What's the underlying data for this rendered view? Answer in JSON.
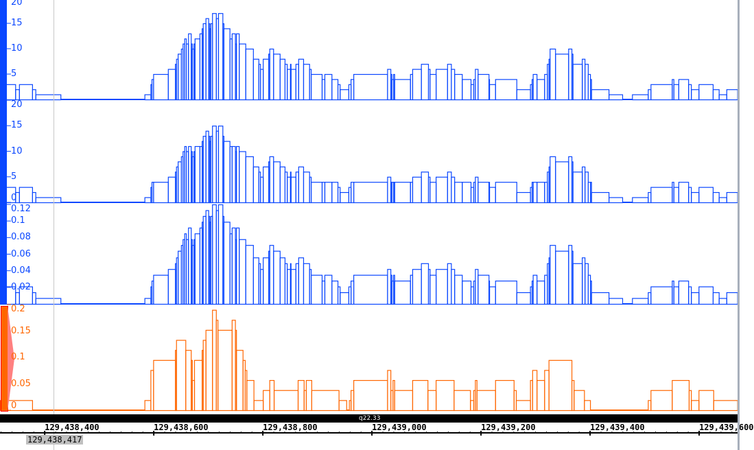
{
  "colors": {
    "coverage": "#0a47ff",
    "orange": "#ff6600",
    "orange_border": "#ff0000",
    "band": "#000000"
  },
  "positions": [
    129438318,
    129438346,
    129438353,
    129438377,
    129438383,
    129438429,
    129438583,
    129438594,
    129438596,
    129438599,
    129438626,
    129438639,
    129438641,
    129438644,
    129438650,
    129438653,
    129438656,
    129438659,
    129438663,
    129438668,
    129438670,
    129438673,
    129438675,
    129438684,
    129438688,
    129438690,
    129438695,
    129438700,
    129438702,
    129438704,
    129438707,
    129438714,
    129438718,
    129438726,
    129438728,
    129438739,
    129438743,
    129438749,
    129438751,
    129438756,
    129438768,
    129438782,
    129438792,
    129438795,
    129438800,
    129438810,
    129438812,
    129438819,
    129438831,
    129438840,
    129438844,
    129438850,
    129438851,
    129438860,
    129438865,
    129438874,
    129438885,
    129438888,
    129438908,
    129438913,
    129438926,
    129438937,
    129438941,
    129438957,
    129438961,
    129438966,
    129439028,
    129439034,
    129439036,
    129439039,
    129439041,
    129439070,
    129439074,
    129439090,
    129439103,
    129439106,
    129439117,
    129439138,
    129439145,
    129439151,
    129439165,
    129439181,
    129439186,
    129439189,
    129439194,
    129439214,
    129439215,
    129439226,
    129439265,
    129439290,
    129439293,
    129439295,
    129439302,
    129439316,
    129439321,
    129439324,
    129439326,
    129439336,
    129439360,
    129439366,
    129439368,
    129439385,
    129439390,
    129439396,
    129439400,
    129439402,
    129439434,
    129439459,
    129439477,
    129439506,
    129439511,
    129439550,
    129439553,
    129439562,
    129439580,
    129439585,
    129439599,
    129439625,
    129439636,
    129439650,
    129439670
  ],
  "tracks": [
    {
      "color": "#0a47ff",
      "range": [
        0,
        20
      ],
      "ticks": [
        "20",
        "15",
        "10",
        "5"
      ],
      "values": [
        3,
        2,
        3,
        2,
        1,
        0,
        1,
        3,
        4,
        5,
        6,
        7,
        8,
        9,
        10,
        11,
        12,
        11,
        13,
        11,
        10,
        11,
        12,
        13,
        14,
        15,
        16,
        15,
        14,
        15,
        17,
        16,
        17,
        15,
        14,
        12,
        13,
        11,
        13,
        11,
        10,
        8,
        7,
        6,
        8,
        9,
        10,
        9,
        8,
        7,
        6,
        7,
        6,
        7,
        8,
        7,
        6,
        5,
        4,
        5,
        4,
        3,
        2,
        3,
        4,
        5,
        6,
        5,
        4,
        5,
        4,
        5,
        6,
        7,
        6,
        5,
        6,
        7,
        6,
        5,
        4,
        3,
        4,
        6,
        5,
        4,
        3,
        4,
        2,
        3,
        4,
        5,
        4,
        5,
        7,
        8,
        10,
        9,
        10,
        9,
        7,
        8,
        7,
        5,
        4,
        2,
        1,
        0,
        1,
        2,
        3,
        4,
        3,
        4,
        3,
        2,
        3,
        2,
        1,
        2
      ]
    },
    {
      "color": "#0a47ff",
      "range": [
        0,
        20
      ],
      "ticks": [
        "20",
        "15",
        "10",
        "5",
        "0"
      ],
      "values": [
        3,
        2,
        3,
        2,
        1,
        0,
        1,
        3,
        4,
        4,
        5,
        6,
        7,
        8,
        9,
        10,
        11,
        10,
        11,
        10,
        9,
        10,
        11,
        11,
        12,
        13,
        14,
        13,
        12,
        13,
        15,
        14,
        15,
        13,
        12,
        11,
        11,
        10,
        11,
        10,
        9,
        7,
        6,
        5,
        7,
        8,
        9,
        8,
        7,
        6,
        5,
        6,
        5,
        6,
        7,
        6,
        5,
        4,
        4,
        4,
        4,
        3,
        2,
        3,
        4,
        4,
        5,
        4,
        4,
        4,
        4,
        4,
        5,
        6,
        5,
        4,
        5,
        6,
        5,
        4,
        4,
        3,
        4,
        5,
        4,
        4,
        3,
        4,
        2,
        3,
        4,
        4,
        4,
        4,
        6,
        7,
        9,
        8,
        9,
        8,
        6,
        7,
        6,
        4,
        4,
        2,
        1,
        0,
        1,
        2,
        3,
        4,
        3,
        4,
        3,
        2,
        3,
        2,
        1,
        2
      ]
    },
    {
      "color": "#0a47ff",
      "range": [
        0,
        0.12
      ],
      "ticks": [
        "0.12",
        "0.1",
        "0.08",
        "0.06",
        "0.04",
        "0.02"
      ],
      "values": [
        0.021,
        0.014,
        0.021,
        0.014,
        0.007,
        0,
        0.007,
        0.021,
        0.028,
        0.035,
        0.042,
        0.049,
        0.056,
        0.064,
        0.071,
        0.078,
        0.085,
        0.078,
        0.092,
        0.078,
        0.071,
        0.078,
        0.085,
        0.092,
        0.099,
        0.106,
        0.113,
        0.106,
        0.099,
        0.106,
        0.12,
        0.113,
        0.12,
        0.106,
        0.099,
        0.085,
        0.092,
        0.078,
        0.092,
        0.078,
        0.071,
        0.056,
        0.049,
        0.042,
        0.056,
        0.064,
        0.071,
        0.064,
        0.056,
        0.049,
        0.042,
        0.049,
        0.042,
        0.049,
        0.056,
        0.049,
        0.042,
        0.035,
        0.028,
        0.035,
        0.028,
        0.021,
        0.014,
        0.021,
        0.028,
        0.035,
        0.042,
        0.035,
        0.028,
        0.035,
        0.028,
        0.035,
        0.042,
        0.049,
        0.042,
        0.035,
        0.042,
        0.049,
        0.042,
        0.035,
        0.028,
        0.021,
        0.028,
        0.042,
        0.035,
        0.028,
        0.021,
        0.028,
        0.014,
        0.021,
        0.028,
        0.035,
        0.028,
        0.035,
        0.049,
        0.056,
        0.071,
        0.064,
        0.071,
        0.064,
        0.049,
        0.056,
        0.049,
        0.035,
        0.028,
        0.014,
        0.007,
        0,
        0.007,
        0.014,
        0.021,
        0.028,
        0.021,
        0.028,
        0.021,
        0.014,
        0.021,
        0.014,
        0.007,
        0.014
      ]
    },
    {
      "color": "#ff6600",
      "range": [
        0,
        0.2
      ],
      "ticks": [
        "0.2",
        "0.15",
        "0.1",
        "0.05",
        "0"
      ],
      "positions": [
        129438318,
        129438377,
        129438583,
        129438594,
        129438599,
        129438639,
        129438641,
        129438658,
        129438668,
        129438670,
        129438674,
        129438688,
        129438690,
        129438695,
        129438707,
        129438714,
        129438717,
        129438743,
        129438749,
        129438751,
        129438763,
        129438767,
        129438770,
        129438783,
        129438800,
        129438812,
        129438820,
        129438864,
        129438875,
        129438879,
        129438889,
        129438939,
        129438953,
        129438958,
        129438961,
        129438966,
        129439028,
        129439034,
        129439038,
        129439041,
        129439074,
        129439102,
        129439117,
        129439150,
        129439180,
        129439186,
        129439189,
        129439192,
        129439226,
        129439260,
        129439264,
        129439290,
        129439294,
        129439302,
        129439316,
        129439324,
        129439366,
        129439370,
        129439389,
        129439400,
        129439506,
        129439511,
        129439550,
        129439581,
        129439585,
        129439599,
        129439626,
        129439670
      ],
      "values": [
        0.019,
        0,
        0.019,
        0.076,
        0.095,
        0.114,
        0.133,
        0.114,
        0.095,
        0.057,
        0.095,
        0.114,
        0.133,
        0.152,
        0.19,
        0.171,
        0.152,
        0.171,
        0.152,
        0.114,
        0.095,
        0.076,
        0.057,
        0.019,
        0.038,
        0.057,
        0.038,
        0.057,
        0.038,
        0.057,
        0.038,
        0.019,
        0,
        0.019,
        0.038,
        0.057,
        0.076,
        0.038,
        0.057,
        0.038,
        0.057,
        0.038,
        0.057,
        0.038,
        0.019,
        0.038,
        0.057,
        0.038,
        0.057,
        0.038,
        0.019,
        0.057,
        0.076,
        0.057,
        0.076,
        0.095,
        0.057,
        0.038,
        0.019,
        0,
        0.019,
        0.038,
        0.057,
        0.038,
        0.019,
        0.038,
        0.019
      ]
    }
  ],
  "ruler": {
    "cytoband": "q22.33",
    "tick_labels": [
      "129,438,400",
      "129,438,600",
      "129,438,800",
      "129,439,000",
      "129,439,200",
      "129,439,400",
      "129,439,600"
    ],
    "current_position": "129,438,417"
  }
}
